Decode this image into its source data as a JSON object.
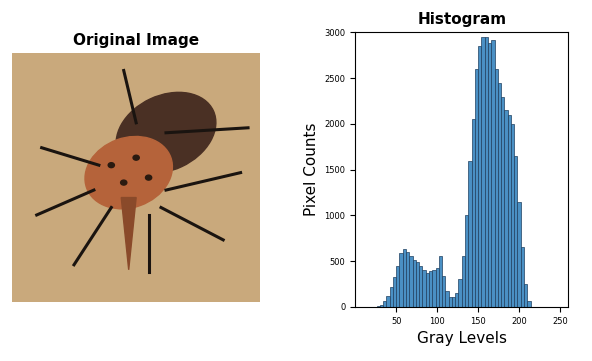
{
  "image": {
    "title": "Original Image"
  },
  "chart_data": {
    "type": "histogram",
    "title": "Histogram",
    "x_label": "Gray Levels",
    "y_label": "Pixel Counts",
    "bins": [
      26,
      30,
      34,
      38,
      42,
      46,
      50,
      54,
      58,
      62,
      66,
      70,
      74,
      78,
      82,
      86,
      90,
      94,
      98,
      102,
      106,
      110,
      114,
      118,
      122,
      126,
      130,
      134,
      138,
      142,
      146,
      150,
      154,
      158,
      162,
      166,
      170,
      174,
      178,
      182,
      186,
      190,
      194,
      198,
      202,
      206,
      210,
      214
    ],
    "counts": [
      5,
      20,
      60,
      120,
      220,
      330,
      450,
      590,
      630,
      600,
      560,
      510,
      490,
      450,
      400,
      370,
      390,
      400,
      430,
      560,
      340,
      170,
      110,
      110,
      150,
      300,
      560,
      1000,
      1600,
      2050,
      2600,
      2850,
      2950,
      2950,
      2880,
      2920,
      2600,
      2450,
      2300,
      2150,
      2100,
      2000,
      1650,
      1150,
      650,
      250,
      60
    ],
    "color": "#4a90c4",
    "xlim": [
      0,
      260
    ],
    "xticks": [
      50,
      100,
      150,
      200,
      250
    ],
    "ylim": [
      0,
      3000
    ],
    "yticks": [
      0,
      500,
      1000,
      1500,
      2000,
      2500,
      3000
    ]
  }
}
